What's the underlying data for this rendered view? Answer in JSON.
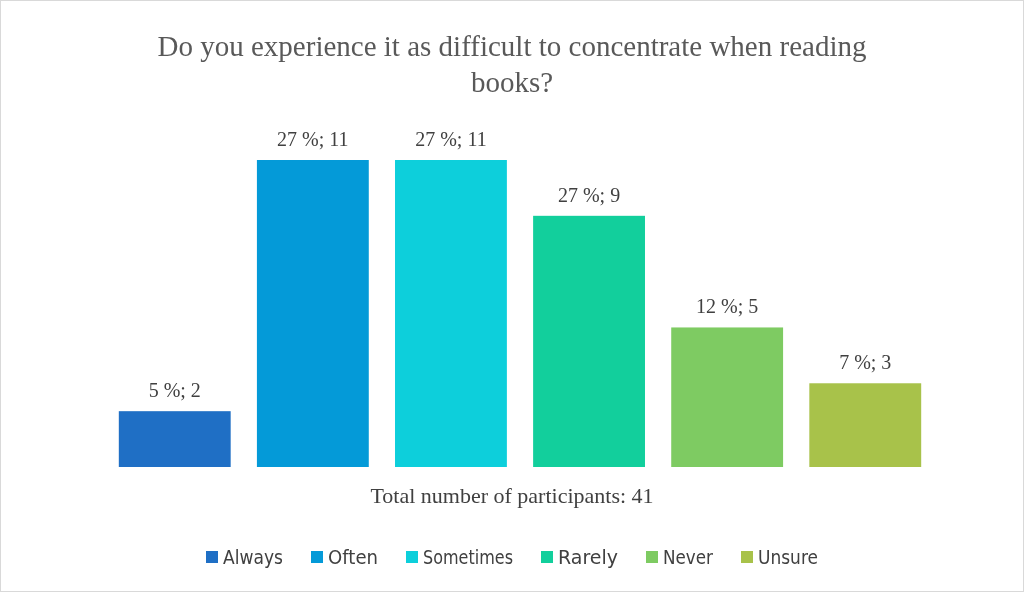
{
  "chart_data": {
    "type": "bar",
    "title": "Do you experience it as difficult to concentrate when reading books?",
    "xlabel": "Total number of participants: 41",
    "categories": [
      null
    ],
    "series": [
      {
        "name": "Always",
        "color": "#1f6fc5",
        "values": [
          2
        ],
        "value_labels": [
          "5 %; 2"
        ]
      },
      {
        "name": "Often",
        "color": "#049ad8",
        "values": [
          11
        ],
        "value_labels": [
          "27 %; 11"
        ]
      },
      {
        "name": "Sometimes",
        "color": "#0dcfdb",
        "values": [
          11
        ],
        "value_labels": [
          "27 %; 11"
        ]
      },
      {
        "name": "Rarely",
        "color": "#12cf9c",
        "values": [
          9
        ],
        "value_labels": [
          "27 %; 9"
        ]
      },
      {
        "name": "Never",
        "color": "#7ecb62",
        "values": [
          5
        ],
        "value_labels": [
          "12 %; 5"
        ]
      },
      {
        "name": "Unsure",
        "color": "#a8c24a",
        "values": [
          3
        ],
        "value_labels": [
          "7 %; 3"
        ]
      }
    ],
    "legend": "bottom"
  }
}
